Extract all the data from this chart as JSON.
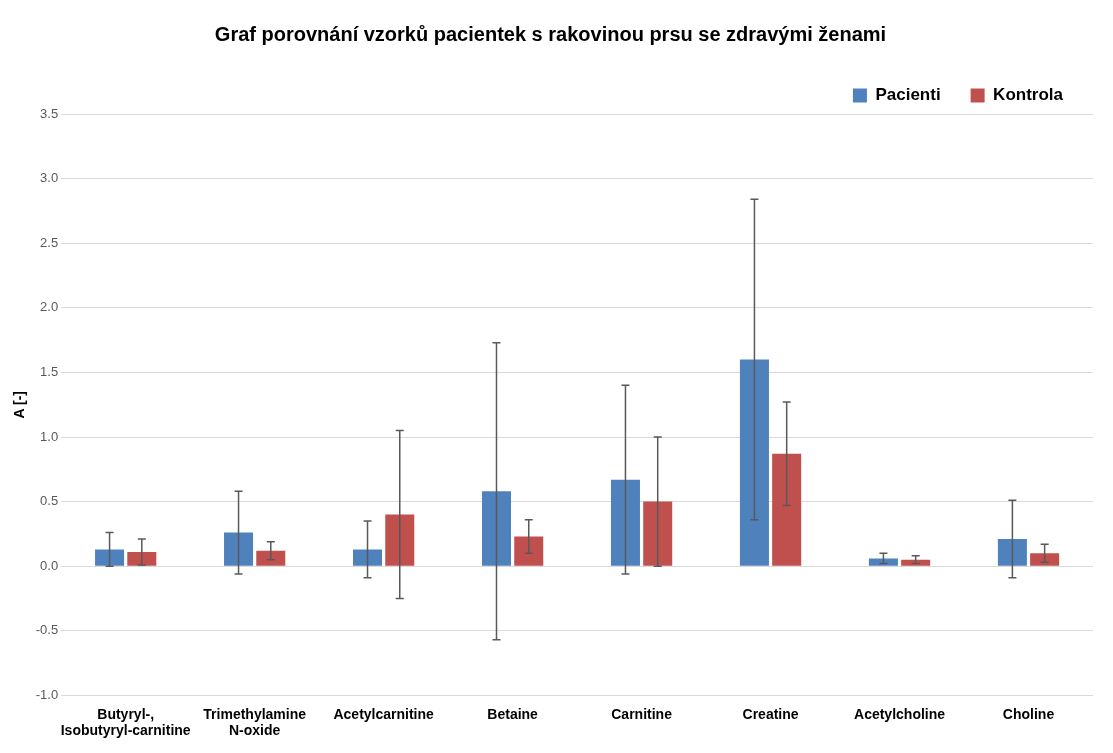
{
  "chart_data": {
    "type": "bar",
    "title": "Graf porovnání vzorků pacientek s rakovinou prsu se zdravými ženami",
    "ylabel": "A [-]",
    "categories": [
      "Butyryl-, Isobutyryl-carnitine",
      "Trimethylamine N-oxide",
      "Acetylcarnitine",
      "Betaine",
      "Carnitine",
      "Creatine",
      "Acetylcholine",
      "Choline"
    ],
    "series": [
      {
        "name": "Pacienti",
        "color": "#4f81bd",
        "values": [
          0.13,
          0.26,
          0.13,
          0.58,
          0.67,
          1.6,
          0.06,
          0.21
        ],
        "errors": [
          0.13,
          0.32,
          0.22,
          1.15,
          0.73,
          1.24,
          0.04,
          0.3
        ]
      },
      {
        "name": "Kontrola",
        "color": "#c0504d",
        "values": [
          0.11,
          0.12,
          0.4,
          0.23,
          0.5,
          0.87,
          0.05,
          0.1
        ],
        "errors": [
          0.1,
          0.07,
          0.65,
          0.13,
          0.5,
          0.4,
          0.03,
          0.07
        ]
      }
    ],
    "ylim": [
      -1.0,
      3.5
    ],
    "yticks": [
      {
        "value": -1,
        "label": "-1.0"
      },
      {
        "value": -0.5,
        "label": "-0.5"
      },
      {
        "value": 0,
        "label": "0.0"
      },
      {
        "value": 0.5,
        "label": "0.5"
      },
      {
        "value": 1,
        "label": "1.0"
      },
      {
        "value": 1.5,
        "label": "1.5"
      },
      {
        "value": 2,
        "label": "2.0"
      },
      {
        "value": 2.5,
        "label": "2.5"
      },
      {
        "value": 3,
        "label": "3.0"
      },
      {
        "value": 3.5,
        "label": "3.5"
      }
    ],
    "grid": "y",
    "legend": "top right"
  }
}
